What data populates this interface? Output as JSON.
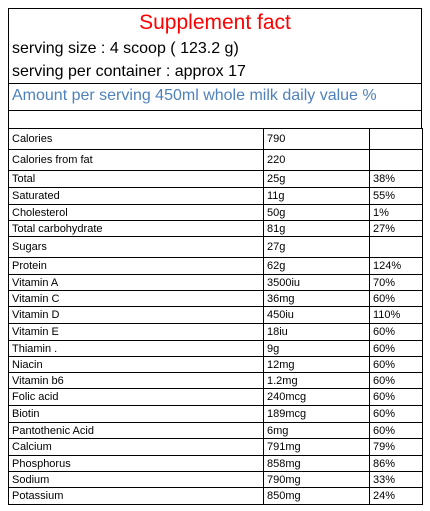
{
  "title": "Supplement fact",
  "serving_size": "serving size : 4 scoop ( 123.2 g)",
  "servings_per_container": "serving per container : approx 17",
  "amount_header": "Amount per serving 450ml whole milk daily value %",
  "rows": [
    {
      "name": "Calories",
      "amount": "790",
      "dv": ""
    },
    {
      "name": "Calories from fat",
      "amount": "220",
      "dv": ""
    },
    {
      "name": "Total",
      "amount": "25g",
      "dv": "38%"
    },
    {
      "name": "Saturated",
      "amount": "11g",
      "dv": "55%"
    },
    {
      "name": "Cholesterol",
      "amount": "50g",
      "dv": "1%"
    },
    {
      "name": "Total carbohydrate",
      "amount": "81g",
      "dv": "27%"
    },
    {
      "name": "Sugars",
      "amount": "27g",
      "dv": ""
    },
    {
      "name": "Protein",
      "amount": "62g",
      "dv": "124%"
    },
    {
      "name": "Vitamin A",
      "amount": "3500iu",
      "dv": "70%"
    },
    {
      "name": "Vitamin C",
      "amount": "36mg",
      "dv": "60%"
    },
    {
      "name": "Vitamin D",
      "amount": "450iu",
      "dv": "110%"
    },
    {
      "name": "Vitamin E",
      "amount": "18iu",
      "dv": "60%"
    },
    {
      "name": "Thiamin .",
      "amount": "9g",
      "dv": "60%"
    },
    {
      "name": "Niacin",
      "amount": "12mg",
      "dv": "60%"
    },
    {
      "name": "Vitamin b6",
      "amount": "1.2mg",
      "dv": "60%"
    },
    {
      "name": "Folic acid",
      "amount": "240mcg",
      "dv": "60%"
    },
    {
      "name": "Biotin",
      "amount": "189mcg",
      "dv": "60%"
    },
    {
      "name": "Pantothenic  Acid",
      "amount": "6mg",
      "dv": "60%"
    },
    {
      "name": "Calcium",
      "amount": "791mg",
      "dv": "79%"
    },
    {
      "name": "Phosphorus",
      "amount": "858mg",
      "dv": "86%"
    },
    {
      "name": "Sodium",
      "amount": "790mg",
      "dv": "33%"
    },
    {
      "name": "Potassium",
      "amount": "850mg",
      "dv": "24%"
    }
  ],
  "colors": {
    "title": "#ff0000",
    "amount_header": "#4f81bd"
  }
}
